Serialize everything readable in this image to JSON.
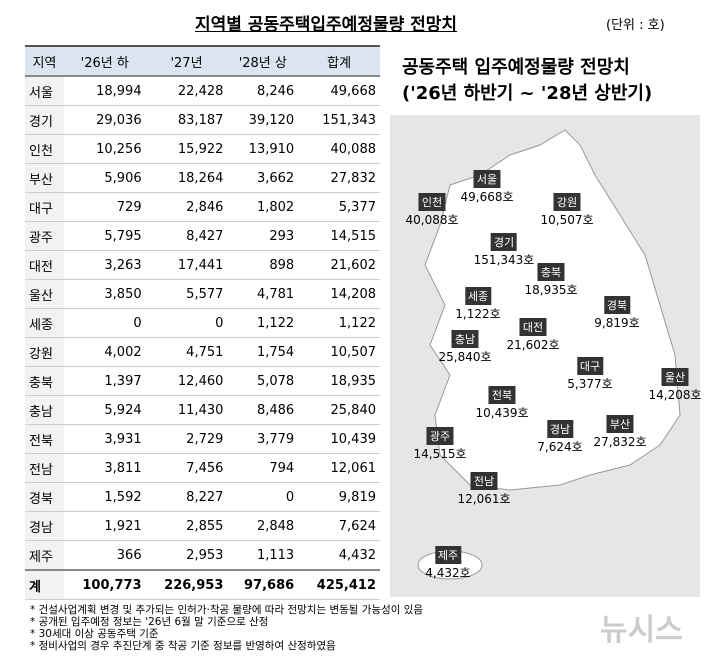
{
  "header": {
    "title": "지역별 공동주택입주예정물량 전망치",
    "unit": "(단위 : 호)"
  },
  "table": {
    "columns": [
      "지역",
      "'26년 하",
      "'27년",
      "'28년 상",
      "합계"
    ],
    "rows": [
      [
        "서울",
        "18,994",
        "22,428",
        "8,246",
        "49,668"
      ],
      [
        "경기",
        "29,036",
        "83,187",
        "39,120",
        "151,343"
      ],
      [
        "인천",
        "10,256",
        "15,922",
        "13,910",
        "40,088"
      ],
      [
        "부산",
        "5,906",
        "18,264",
        "3,662",
        "27,832"
      ],
      [
        "대구",
        "729",
        "2,846",
        "1,802",
        "5,377"
      ],
      [
        "광주",
        "5,795",
        "8,427",
        "293",
        "14,515"
      ],
      [
        "대전",
        "3,263",
        "17,441",
        "898",
        "21,602"
      ],
      [
        "울산",
        "3,850",
        "5,577",
        "4,781",
        "14,208"
      ],
      [
        "세종",
        "0",
        "0",
        "1,122",
        "1,122"
      ],
      [
        "강원",
        "4,002",
        "4,751",
        "1,754",
        "10,507"
      ],
      [
        "충북",
        "1,397",
        "12,460",
        "5,078",
        "18,935"
      ],
      [
        "충남",
        "5,924",
        "11,430",
        "8,486",
        "25,840"
      ],
      [
        "전북",
        "3,931",
        "2,729",
        "3,779",
        "10,439"
      ],
      [
        "전남",
        "3,811",
        "7,456",
        "794",
        "12,061"
      ],
      [
        "경북",
        "1,592",
        "8,227",
        "0",
        "9,819"
      ],
      [
        "경남",
        "1,921",
        "2,855",
        "2,848",
        "7,624"
      ],
      [
        "제주",
        "366",
        "2,953",
        "1,113",
        "4,432"
      ]
    ],
    "total": [
      "계",
      "100,773",
      "226,953",
      "97,686",
      "425,412"
    ]
  },
  "map": {
    "title": "공동주택 입주예정물량 전망치",
    "subtitle": "('26년 하반기 ~ '28년 상반기)",
    "labels": [
      {
        "name": "인천",
        "value": "40,088호"
      },
      {
        "name": "서울",
        "value": "49,668호"
      },
      {
        "name": "강원",
        "value": "10,507호"
      },
      {
        "name": "경기",
        "value": "151,343호"
      },
      {
        "name": "충북",
        "value": "18,935호"
      },
      {
        "name": "세종",
        "value": "1,122호"
      },
      {
        "name": "대전",
        "value": "21,602호"
      },
      {
        "name": "경북",
        "value": "9,819호"
      },
      {
        "name": "충남",
        "value": "25,840호"
      },
      {
        "name": "대구",
        "value": "5,377호"
      },
      {
        "name": "울산",
        "value": "14,208호"
      },
      {
        "name": "전북",
        "value": "10,439호"
      },
      {
        "name": "경남",
        "value": "7,624호"
      },
      {
        "name": "부산",
        "value": "27,832호"
      },
      {
        "name": "광주",
        "value": "14,515호"
      },
      {
        "name": "전남",
        "value": "12,061호"
      },
      {
        "name": "제주",
        "value": "4,432호"
      }
    ]
  },
  "notes": [
    "* 건설사업계획 변경 및 추가되는 인허가·착공 물량에 따라 전망치는 변동될 가능성이 있음",
    "* 공개된 입주예정 정보는 '26년 6월 말 기준으로 산정",
    "* 30세대 이상 공동주택 기준",
    "* 정비사업의 경우 추진단계 중 착공 기준 정보를 반영하여 산정하였음"
  ],
  "watermark": "뉴시스"
}
